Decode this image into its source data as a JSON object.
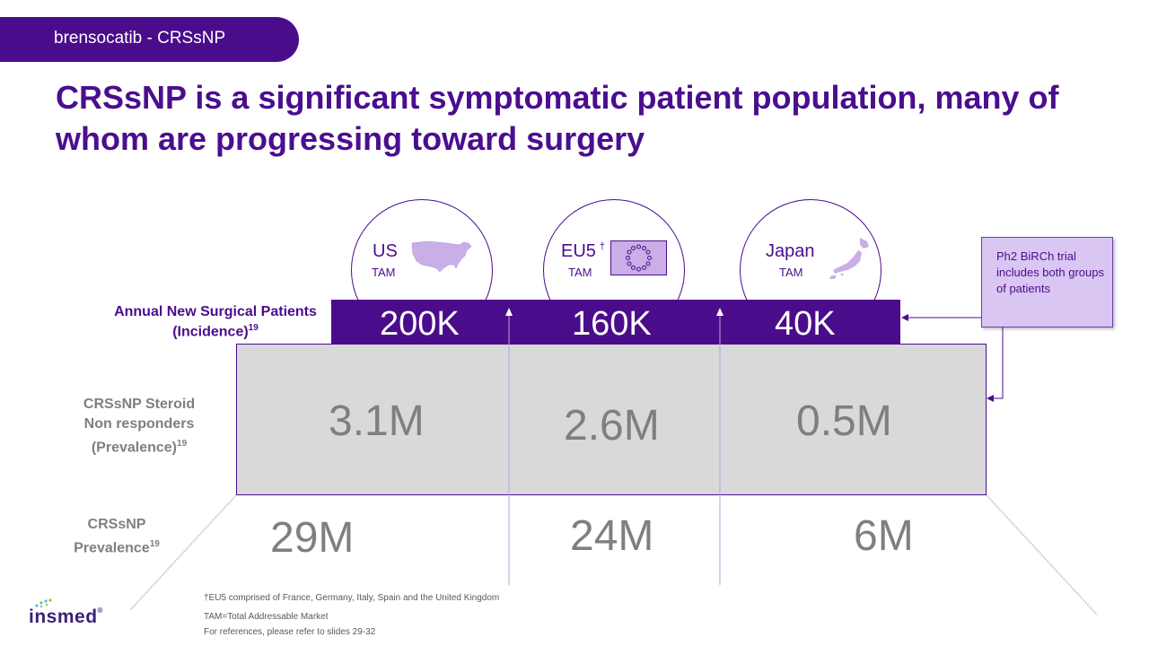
{
  "header": {
    "tag": "brensocatib - CRSsNP"
  },
  "title": "CRSsNP is a significant symptomatic patient population, many of whom are progressing toward surgery",
  "regions": [
    {
      "name": "US",
      "sub": "TAM",
      "incidence": "200K",
      "nonresponders": "3.1M",
      "prevalence": "29M",
      "icon": "us-map-icon"
    },
    {
      "name": "EU5",
      "dagger": "†",
      "sub": "TAM",
      "incidence": "160K",
      "nonresponders": "2.6M",
      "prevalence": "24M",
      "icon": "eu-flag-icon"
    },
    {
      "name": "Japan",
      "sub": "TAM",
      "incidence": "40K",
      "nonresponders": "0.5M",
      "prevalence": "6M",
      "icon": "japan-map-icon"
    }
  ],
  "row_labels": {
    "incidence_line1": "Annual New Surgical Patients",
    "incidence_line2": "(Incidence)",
    "incidence_ref": "19",
    "nonresp_line1": "CRSsNP Steroid",
    "nonresp_line2": "Non responders",
    "nonresp_line3": "(Prevalence)",
    "nonresp_ref": "19",
    "prev_line1": "CRSsNP",
    "prev_line2": "Prevalence",
    "prev_ref": "19"
  },
  "callout": "Ph2 BiRCh trial includes both groups of patients",
  "footnotes": [
    "†EU5 comprised of France, Germany, Italy, Spain and the United Kingdom",
    "TAM=Total Addressable Market",
    "For references, please refer to slides 29-32"
  ],
  "logo": {
    "text": "insmed",
    "reg": "®"
  },
  "colors": {
    "brand_purple": "#4b0c8c",
    "grey_box": "#d9d9d9",
    "value_grey": "#7f7f7f",
    "callout_fill": "#d9c6f2"
  }
}
